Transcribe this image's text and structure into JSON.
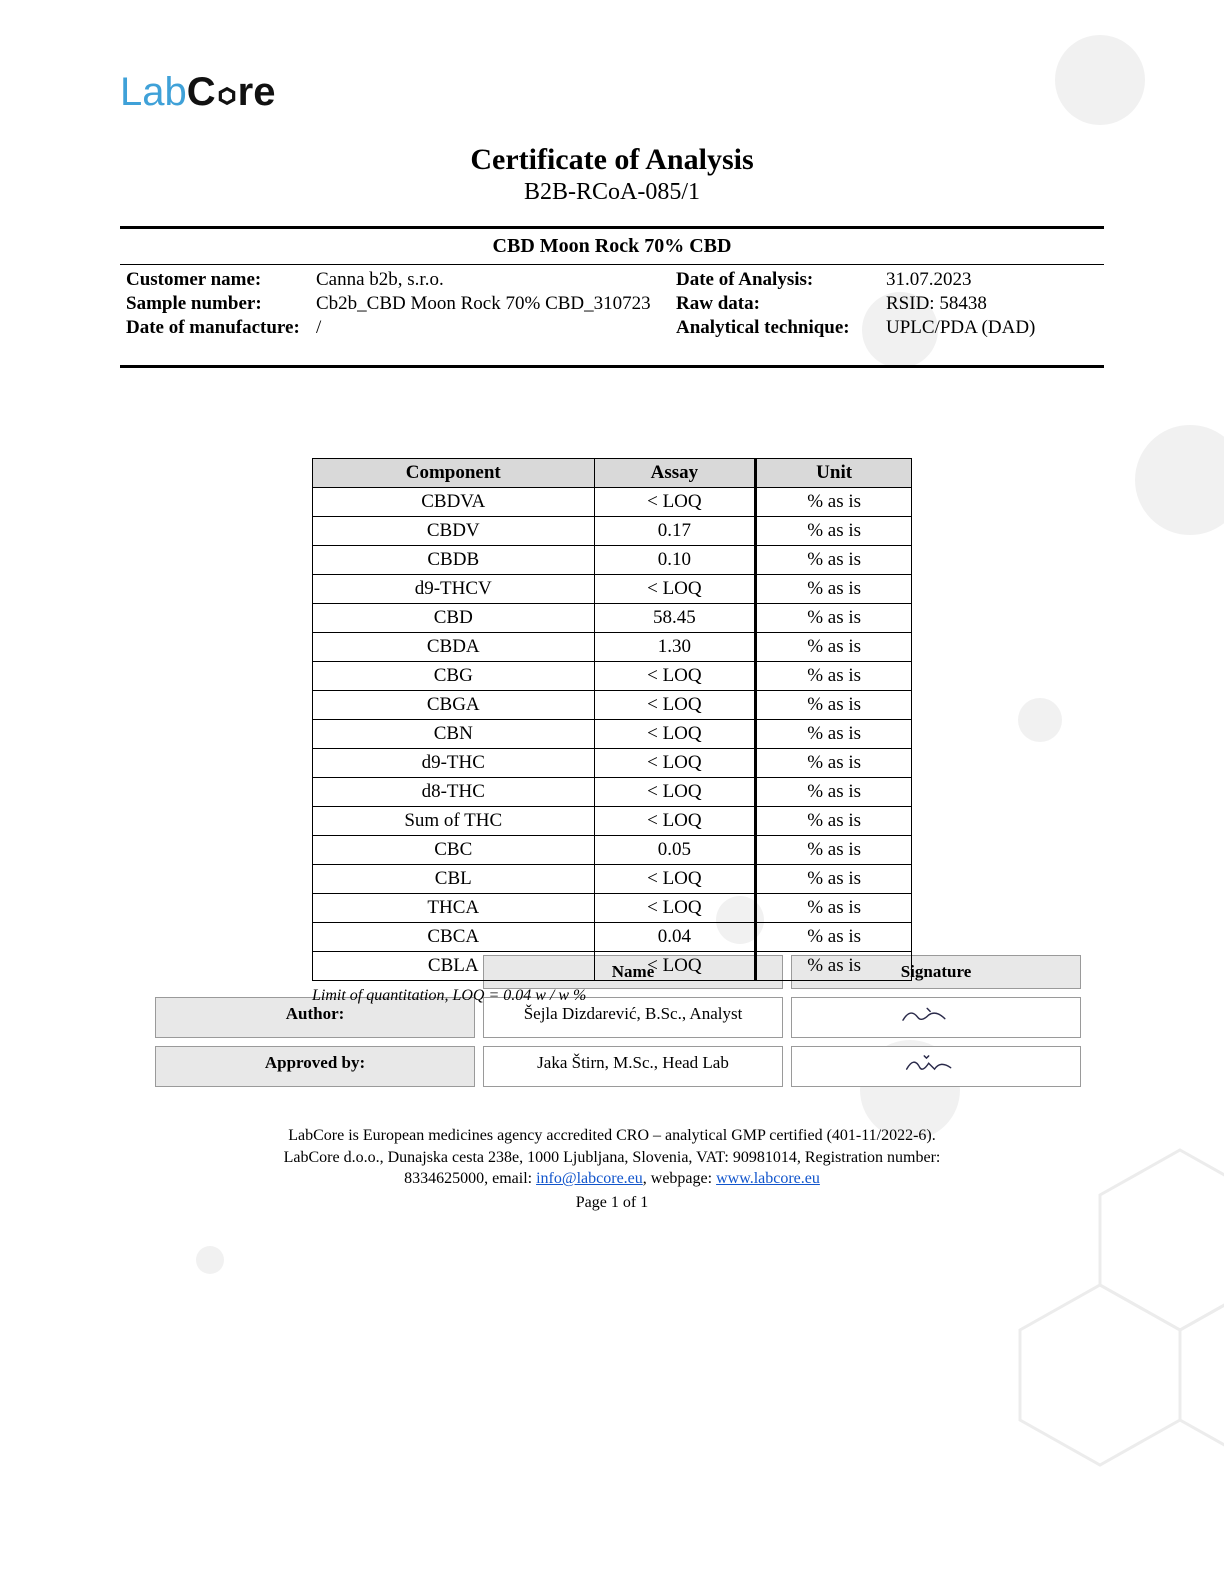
{
  "logo": {
    "part1": "Lab",
    "part2": "C",
    "part3": "o",
    "part4": "re"
  },
  "title": "Certificate of Analysis",
  "doc_id": "B2B-RCoA-085/1",
  "product_name": "CBD Moon Rock 70% CBD",
  "meta": {
    "customer_label": "Customer name:",
    "customer_value": "Canna b2b, s.r.o.",
    "sample_label": "Sample number:",
    "sample_value": "Cb2b_CBD Moon Rock 70% CBD_310723",
    "manufacture_label": "Date of manufacture:",
    "manufacture_value": "/",
    "analysis_date_label": "Date of Analysis:",
    "analysis_date_value": "31.07.2023",
    "raw_data_label": "Raw data:",
    "raw_data_value": "RSID: 58438",
    "technique_label": "Analytical technique:",
    "technique_value": "UPLC/PDA (DAD)"
  },
  "component_table": {
    "headers": {
      "c1": "Component",
      "c2": "Assay",
      "c3": "Unit"
    },
    "unit": "% as is",
    "rows": [
      {
        "comp": "CBDVA",
        "assay": "< LOQ"
      },
      {
        "comp": "CBDV",
        "assay": "0.17"
      },
      {
        "comp": "CBDB",
        "assay": "0.10"
      },
      {
        "comp": "d9-THCV",
        "assay": "< LOQ"
      },
      {
        "comp": "CBD",
        "assay": "58.45"
      },
      {
        "comp": "CBDA",
        "assay": "1.30"
      },
      {
        "comp": "CBG",
        "assay": "< LOQ"
      },
      {
        "comp": "CBGA",
        "assay": "< LOQ"
      },
      {
        "comp": "CBN",
        "assay": "< LOQ"
      },
      {
        "comp": "d9-THC",
        "assay": "< LOQ"
      },
      {
        "comp": "d8-THC",
        "assay": "< LOQ"
      },
      {
        "comp": "Sum of THC",
        "assay": "< LOQ"
      },
      {
        "comp": "CBC",
        "assay": "0.05"
      },
      {
        "comp": "CBL",
        "assay": "< LOQ"
      },
      {
        "comp": "THCA",
        "assay": "< LOQ"
      },
      {
        "comp": "CBCA",
        "assay": "0.04"
      },
      {
        "comp": "CBLA",
        "assay": "< LOQ"
      }
    ],
    "note": "Limit of quantitation, LOQ = 0.04 w / w %"
  },
  "signoff": {
    "name_header": "Name",
    "signature_header": "Signature",
    "author_label": "Author:",
    "author_name": "Šejla Dizdarević, B.Sc., Analyst",
    "approved_label": "Approved by:",
    "approved_name": "Jaka Štirn, M.Sc., Head Lab"
  },
  "footer": {
    "line1": "LabCore is European medicines agency accredited CRO – analytical GMP certified (401-11/2022-6).",
    "line2a": "LabCore d.o.o., Dunajska cesta 238e, 1000 Ljubljana, Slovenia, VAT: 90981014, Registration number:",
    "line2b_prefix": "8334625000, email: ",
    "email": "info@labcore.eu",
    "line2b_mid": ", webpage: ",
    "web": "www.labcore.eu",
    "page": "Page 1 of 1"
  },
  "colors": {
    "logo_blue": "#3fa1d8",
    "header_grey": "#d9d9d9",
    "signoff_grey": "#e8e8e8",
    "link_blue": "#1155cc",
    "deco_grey": "#ececec"
  }
}
